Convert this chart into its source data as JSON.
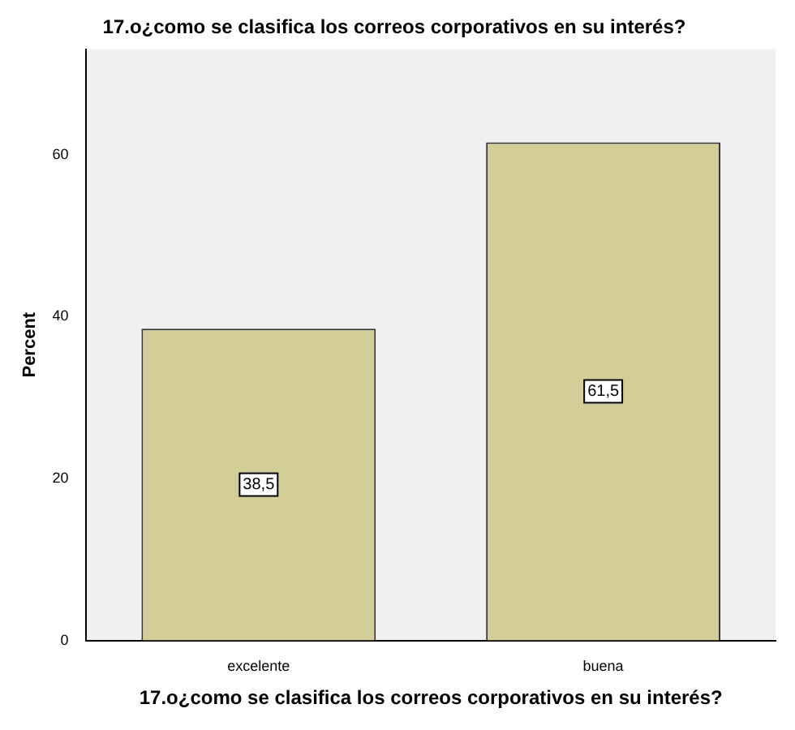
{
  "chart_data": {
    "type": "bar",
    "title": "17.o¿como se clasifica los correos corporativos en su interés?",
    "xlabel": "17.o¿como se clasifica los correos corporativos en su interés?",
    "ylabel": "Percent",
    "categories": [
      "excelente",
      "buena"
    ],
    "values": [
      38.5,
      61.5
    ],
    "value_labels": [
      "38,5",
      "61,5"
    ],
    "color": "#d3ce97",
    "ylim": [
      0,
      73
    ],
    "yticks": [
      0,
      20,
      40,
      60
    ],
    "grid": false,
    "legend": false
  }
}
